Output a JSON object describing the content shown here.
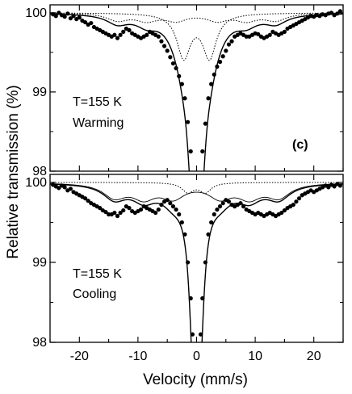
{
  "chart_data": {
    "type": "scatter",
    "xlabel": "Velocity (mm/s)",
    "ylabel": "Relative transmission (%)",
    "xlim": [
      -25,
      25
    ],
    "x_ticks": [
      -20,
      -10,
      0,
      10,
      20
    ],
    "x_tick_labels": [
      "-20",
      "-10",
      "0",
      "10",
      "20"
    ],
    "grid": false,
    "panels": [
      {
        "panel_label": "(c)",
        "annotations": [
          "T=155 K",
          "Warming"
        ],
        "ylim": [
          98,
          100.1
        ],
        "y_ticks": [
          98,
          99,
          100
        ],
        "y_tick_labels": [
          "98",
          "99",
          "100"
        ],
        "fit_total": {
          "baseline": 100,
          "components": [
            {
              "type": "lorentzian",
              "center": -0.8,
              "depth": 1.6,
              "hwhm": 0.9
            },
            {
              "type": "lorentzian",
              "center": 0.8,
              "depth": 1.6,
              "hwhm": 0.9
            },
            {
              "type": "lorentzian",
              "center": -2.2,
              "depth": 0.42,
              "hwhm": 1.6
            },
            {
              "type": "lorentzian",
              "center": 2.2,
              "depth": 0.42,
              "hwhm": 1.6
            },
            {
              "type": "sextet",
              "lines": [
                -13.5,
                -8.5,
                -3.5,
                3.5,
                8.5,
                13.5
              ],
              "depth": 0.11,
              "hwhm": 2.2
            }
          ]
        },
        "fit_subcomponents": [
          {
            "name": "quadrupole-doublet",
            "style": "dotted",
            "lines": [
              -2.2,
              2.2
            ],
            "depth": 0.55,
            "hwhm": 1.4
          },
          {
            "name": "magnetic-sextet",
            "style": "dotted",
            "lines": [
              -13.5,
              -8.5,
              -3.5,
              3.5,
              8.5,
              13.5
            ],
            "depth": 0.09,
            "hwhm": 2.2
          }
        ],
        "points": [
          [
            -24.5,
            99.98
          ],
          [
            -24,
            99.96
          ],
          [
            -23.5,
            100.0
          ],
          [
            -23,
            99.97
          ],
          [
            -22.5,
            99.95
          ],
          [
            -22,
            99.99
          ],
          [
            -21.5,
            99.93
          ],
          [
            -21,
            99.96
          ],
          [
            -20.5,
            99.92
          ],
          [
            -20,
            99.94
          ],
          [
            -19.5,
            99.9
          ],
          [
            -19,
            99.88
          ],
          [
            -18.5,
            99.85
          ],
          [
            -18,
            99.87
          ],
          [
            -17.5,
            99.82
          ],
          [
            -17,
            99.8
          ],
          [
            -16.5,
            99.78
          ],
          [
            -16,
            99.76
          ],
          [
            -15.5,
            99.74
          ],
          [
            -15,
            99.72
          ],
          [
            -14.5,
            99.7
          ],
          [
            -14,
            99.72
          ],
          [
            -13.5,
            99.68
          ],
          [
            -13,
            99.72
          ],
          [
            -12.5,
            99.76
          ],
          [
            -12,
            99.8
          ],
          [
            -11.5,
            99.78
          ],
          [
            -11,
            99.74
          ],
          [
            -10.5,
            99.72
          ],
          [
            -10,
            99.7
          ],
          [
            -9.5,
            99.68
          ],
          [
            -9,
            99.7
          ],
          [
            -8.5,
            99.72
          ],
          [
            -8,
            99.76
          ],
          [
            -7.5,
            99.74
          ],
          [
            -7,
            99.72
          ],
          [
            -6.5,
            99.7
          ],
          [
            -6,
            99.64
          ],
          [
            -5.5,
            99.58
          ],
          [
            -5,
            99.52
          ],
          [
            -4.5,
            99.44
          ],
          [
            -4,
            99.36
          ],
          [
            -3.5,
            99.3
          ],
          [
            -3,
            99.2
          ],
          [
            -2.5,
            99.1
          ],
          [
            -2,
            98.92
          ],
          [
            -1.5,
            98.62
          ],
          [
            -1,
            98.25
          ],
          [
            1,
            98.25
          ],
          [
            1.5,
            98.6
          ],
          [
            2,
            98.92
          ],
          [
            2.5,
            99.1
          ],
          [
            3,
            99.22
          ],
          [
            3.5,
            99.32
          ],
          [
            4,
            99.38
          ],
          [
            4.5,
            99.45
          ],
          [
            5,
            99.52
          ],
          [
            5.5,
            99.6
          ],
          [
            6,
            99.64
          ],
          [
            6.5,
            99.7
          ],
          [
            7,
            99.72
          ],
          [
            7.5,
            99.74
          ],
          [
            8,
            99.72
          ],
          [
            8.5,
            99.7
          ],
          [
            9,
            99.7
          ],
          [
            9.5,
            99.72
          ],
          [
            10,
            99.74
          ],
          [
            10.5,
            99.73
          ],
          [
            11,
            99.7
          ],
          [
            11.5,
            99.68
          ],
          [
            12,
            99.7
          ],
          [
            12.5,
            99.72
          ],
          [
            13,
            99.76
          ],
          [
            13.5,
            99.74
          ],
          [
            14,
            99.72
          ],
          [
            14.5,
            99.74
          ],
          [
            15,
            99.76
          ],
          [
            15.5,
            99.8
          ],
          [
            16,
            99.82
          ],
          [
            16.5,
            99.84
          ],
          [
            17,
            99.86
          ],
          [
            17.5,
            99.88
          ],
          [
            18,
            99.9
          ],
          [
            18.5,
            99.92
          ],
          [
            19,
            99.94
          ],
          [
            19.5,
            99.96
          ],
          [
            20,
            99.95
          ],
          [
            20.5,
            99.97
          ],
          [
            21,
            99.96
          ],
          [
            21.5,
            99.98
          ],
          [
            22,
            99.97
          ],
          [
            22.5,
            99.99
          ],
          [
            23,
            100.0
          ],
          [
            23.5,
            99.97
          ],
          [
            24,
            99.99
          ],
          [
            24.5,
            100.02
          ]
        ]
      },
      {
        "panel_label": "",
        "annotations": [
          "T=155 K",
          "Cooling"
        ],
        "ylim": [
          98,
          100.1
        ],
        "y_ticks": [
          98,
          99,
          100
        ],
        "y_tick_labels": [
          "98",
          "99",
          "100"
        ],
        "fit_total": {
          "baseline": 100,
          "components": [
            {
              "type": "lorentzian",
              "center": -0.5,
              "depth": 1.75,
              "hwhm": 0.85
            },
            {
              "type": "lorentzian",
              "center": 0.5,
              "depth": 1.75,
              "hwhm": 0.85
            },
            {
              "type": "sextet",
              "lines": [
                -14,
                -9,
                -4,
                4,
                9,
                14
              ],
              "depth": 0.18,
              "hwhm": 2.4
            }
          ]
        },
        "fit_subcomponents": [
          {
            "name": "quadrupole-doublet",
            "style": "dotted",
            "lines": [
              -1.5,
              1.5
            ],
            "depth": 0.12,
            "hwhm": 1.2
          },
          {
            "name": "magnetic-sextet",
            "style": "solid",
            "lines": [
              -14,
              -9,
              -4,
              4,
              9,
              14
            ],
            "depth": 0.17,
            "hwhm": 2.4
          }
        ],
        "points": [
          [
            -24.5,
            99.97
          ],
          [
            -24,
            99.95
          ],
          [
            -23.5,
            99.93
          ],
          [
            -23,
            99.96
          ],
          [
            -22.5,
            99.94
          ],
          [
            -22,
            99.9
          ],
          [
            -21.5,
            99.92
          ],
          [
            -21,
            99.88
          ],
          [
            -20.5,
            99.86
          ],
          [
            -20,
            99.84
          ],
          [
            -19.5,
            99.82
          ],
          [
            -19,
            99.8
          ],
          [
            -18.5,
            99.77
          ],
          [
            -18,
            99.74
          ],
          [
            -17.5,
            99.72
          ],
          [
            -17,
            99.7
          ],
          [
            -16.5,
            99.68
          ],
          [
            -16,
            99.65
          ],
          [
            -15.5,
            99.63
          ],
          [
            -15,
            99.6
          ],
          [
            -14.5,
            99.6
          ],
          [
            -14,
            99.62
          ],
          [
            -13.5,
            99.58
          ],
          [
            -13,
            99.62
          ],
          [
            -12.5,
            99.65
          ],
          [
            -12,
            99.7
          ],
          [
            -11.5,
            99.68
          ],
          [
            -11,
            99.64
          ],
          [
            -10.5,
            99.62
          ],
          [
            -10,
            99.64
          ],
          [
            -9.5,
            99.66
          ],
          [
            -9,
            99.7
          ],
          [
            -8.5,
            99.68
          ],
          [
            -8,
            99.66
          ],
          [
            -7.5,
            99.64
          ],
          [
            -7,
            99.62
          ],
          [
            -6.5,
            99.66
          ],
          [
            -6,
            99.72
          ],
          [
            -5.5,
            99.76
          ],
          [
            -5,
            99.78
          ],
          [
            -4.5,
            99.74
          ],
          [
            -4,
            99.7
          ],
          [
            -3.5,
            99.66
          ],
          [
            -3,
            99.6
          ],
          [
            -2.5,
            99.5
          ],
          [
            -2,
            99.35
          ],
          [
            -1.5,
            99.0
          ],
          [
            -1,
            98.55
          ],
          [
            -0.7,
            98.1
          ],
          [
            0.7,
            98.1
          ],
          [
            1,
            98.55
          ],
          [
            1.5,
            99.0
          ],
          [
            2,
            99.35
          ],
          [
            2.5,
            99.5
          ],
          [
            3,
            99.6
          ],
          [
            3.5,
            99.66
          ],
          [
            4,
            99.7
          ],
          [
            4.5,
            99.74
          ],
          [
            5,
            99.78
          ],
          [
            5.5,
            99.76
          ],
          [
            6,
            99.72
          ],
          [
            6.5,
            99.7
          ],
          [
            7,
            99.72
          ],
          [
            7.5,
            99.74
          ],
          [
            8,
            99.7
          ],
          [
            8.5,
            99.66
          ],
          [
            9,
            99.64
          ],
          [
            9.5,
            99.62
          ],
          [
            10,
            99.6
          ],
          [
            10.5,
            99.62
          ],
          [
            11,
            99.6
          ],
          [
            11.5,
            99.58
          ],
          [
            12,
            99.6
          ],
          [
            12.5,
            99.62
          ],
          [
            13,
            99.6
          ],
          [
            13.5,
            99.58
          ],
          [
            14,
            99.6
          ],
          [
            14.5,
            99.62
          ],
          [
            15,
            99.65
          ],
          [
            15.5,
            99.68
          ],
          [
            16,
            99.7
          ],
          [
            16.5,
            99.72
          ],
          [
            17,
            99.76
          ],
          [
            17.5,
            99.8
          ],
          [
            18,
            99.84
          ],
          [
            18.5,
            99.86
          ],
          [
            19,
            99.88
          ],
          [
            19.5,
            99.9
          ],
          [
            20,
            99.88
          ],
          [
            20.5,
            99.9
          ],
          [
            21,
            99.92
          ],
          [
            21.5,
            99.94
          ],
          [
            22,
            99.96
          ],
          [
            22.5,
            99.94
          ],
          [
            23,
            99.97
          ],
          [
            23.5,
            99.95
          ],
          [
            24,
            99.98
          ],
          [
            24.5,
            99.96
          ]
        ]
      }
    ]
  }
}
